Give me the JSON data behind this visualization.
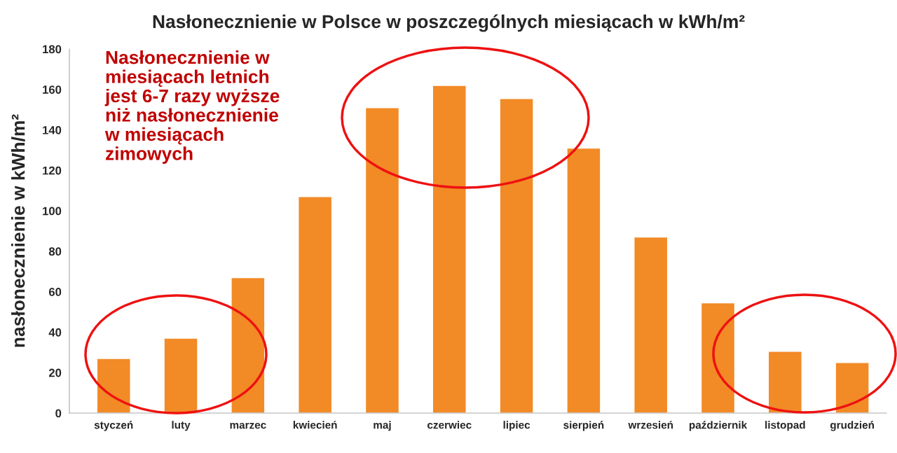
{
  "chart_data": {
    "type": "bar",
    "title": "Nasłonecznienie w Polsce w poszczególnych miesiącach w kWh/m²",
    "ylabel": "nasłonecznienie w kWh/m²",
    "categories": [
      "styczeń",
      "luty",
      "marzec",
      "kwiecień",
      "maj",
      "czerwiec",
      "lipiec",
      "sierpień",
      "wrzesień",
      "październik",
      "listopad",
      "grudzień"
    ],
    "values": [
      27,
      37,
      67,
      107,
      151,
      162,
      155.5,
      131,
      87,
      54.5,
      30.5,
      25
    ],
    "color": "#f28a26",
    "ylim": [
      0,
      180
    ],
    "yticks": [
      0,
      20,
      40,
      60,
      80,
      100,
      120,
      140,
      160,
      180
    ],
    "annotations": [
      "Nasłonecznienie w\nmiesiącach letnich\njest 6-7 razy wyższe\nniż nasłonecznienie\nw miesiącach\nzimowych"
    ]
  }
}
